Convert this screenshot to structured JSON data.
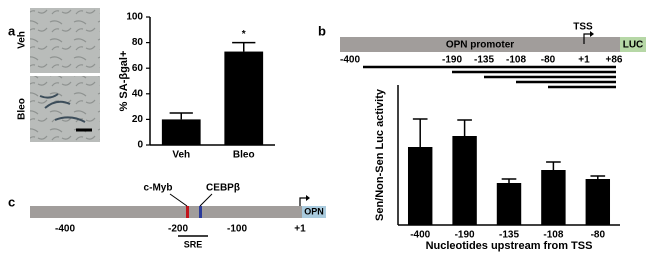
{
  "panel_labels": [
    "a",
    "b",
    "c"
  ],
  "micrographs": {
    "labels": [
      "Veh",
      "Bleo"
    ]
  },
  "promoter_construct": {
    "promoter_label": "OPN promoter",
    "reporter_label": "LUC",
    "tss_label": "TSS",
    "positions": [
      "-400",
      "-190",
      "-135",
      "-108",
      "-80",
      "+1",
      "+86"
    ]
  },
  "promoter_map": {
    "sites": [
      "c-Myb",
      "CEBPβ"
    ],
    "positions": [
      "-400",
      "-200",
      "-100",
      "+1"
    ],
    "gene_label": "OPN",
    "element_label": "SRE"
  },
  "chart_data": [
    {
      "type": "bar",
      "y_label": "% SA-βgal+",
      "categories": [
        "Veh",
        "Bleo"
      ],
      "values": [
        20,
        73
      ],
      "errors": [
        5,
        7
      ],
      "significance": [
        null,
        "*"
      ],
      "color": "#000000",
      "ylim": [
        0,
        100
      ],
      "yticks": [
        0,
        20,
        40,
        60,
        80,
        100
      ]
    },
    {
      "type": "bar",
      "y_label": "Sen/Non-Sen Luc activity",
      "x_label": "Nucleotides upstream from TSS",
      "categories": [
        "-400",
        "-190",
        "-135",
        "-108",
        "-80"
      ],
      "values": [
        3.9,
        4.45,
        2.1,
        2.75,
        2.3
      ],
      "errors": [
        1.4,
        0.8,
        0.2,
        0.4,
        0.15
      ],
      "color": "#000000",
      "ylim": [
        0,
        7
      ]
    }
  ]
}
